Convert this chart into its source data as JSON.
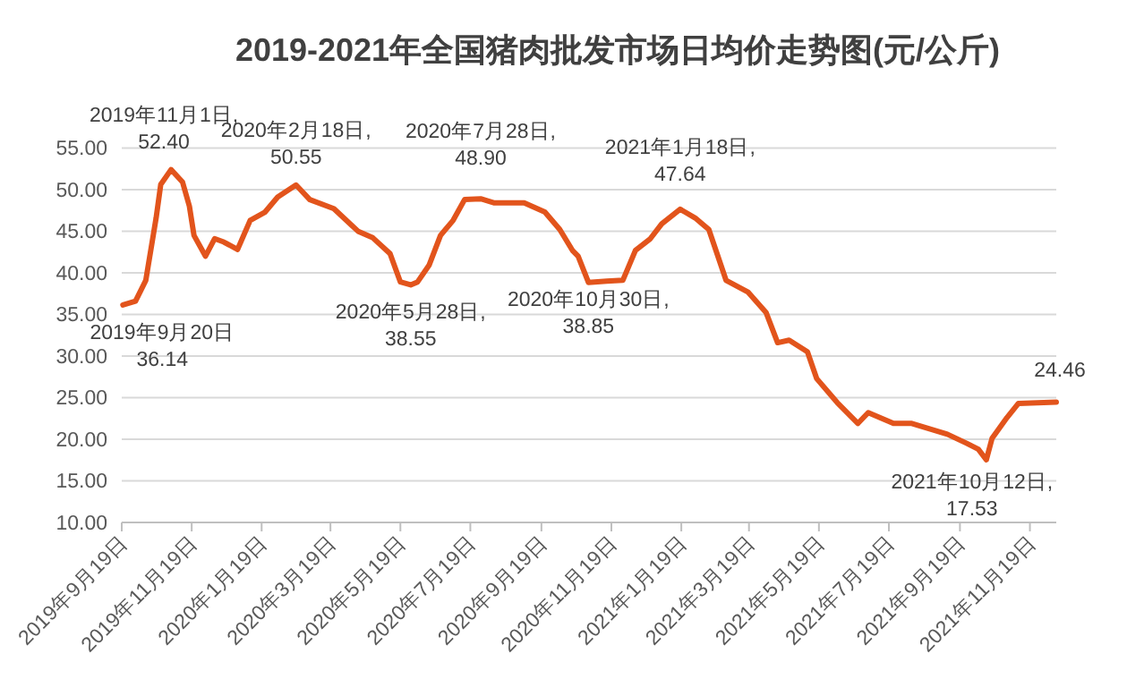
{
  "chart_data": {
    "type": "line",
    "title": "2019-2021年全国猪肉批发市场日均价走势图(元/公斤)",
    "x": [
      "2019-09-20",
      "2019-10-01",
      "2019-10-10",
      "2019-10-19",
      "2019-10-23",
      "2019-11-01",
      "2019-11-11",
      "2019-11-17",
      "2019-11-21",
      "2019-12-01",
      "2019-12-09",
      "2019-12-17",
      "2019-12-29",
      "2020-01-09",
      "2020-01-22",
      "2020-02-02",
      "2020-02-18",
      "2020-03-01",
      "2020-03-22",
      "2020-04-12",
      "2020-04-25",
      "2020-05-10",
      "2020-05-19",
      "2020-05-28",
      "2020-06-03",
      "2020-06-13",
      "2020-06-23",
      "2020-07-04",
      "2020-07-14",
      "2020-07-28",
      "2020-08-09",
      "2020-09-04",
      "2020-09-22",
      "2020-10-05",
      "2020-10-16",
      "2020-10-21",
      "2020-10-30",
      "2020-11-15",
      "2020-11-29",
      "2020-12-10",
      "2020-12-23",
      "2021-01-02",
      "2021-01-18",
      "2021-01-31",
      "2021-02-12",
      "2021-02-27",
      "2021-03-18",
      "2021-04-03",
      "2021-04-13",
      "2021-04-23",
      "2021-05-09",
      "2021-05-17",
      "2021-06-04",
      "2021-06-22",
      "2021-07-01",
      "2021-07-23",
      "2021-08-08",
      "2021-09-08",
      "2021-09-25",
      "2021-10-05",
      "2021-10-12",
      "2021-10-17",
      "2021-10-30",
      "2021-11-09",
      "2021-12-12"
    ],
    "series": [
      {
        "color": "#e2541c",
        "values": [
          36.14,
          36.6,
          39.1,
          46.6,
          50.6,
          52.4,
          50.9,
          48.0,
          44.5,
          42.0,
          44.1,
          43.7,
          42.8,
          46.3,
          47.3,
          49.1,
          50.55,
          48.8,
          47.7,
          45.0,
          44.2,
          42.3,
          38.9,
          38.55,
          38.9,
          40.9,
          44.5,
          46.3,
          48.8,
          48.9,
          48.4,
          48.4,
          47.3,
          45.2,
          42.7,
          42.0,
          38.85,
          39.0,
          39.1,
          42.7,
          44.1,
          45.9,
          47.64,
          46.6,
          45.2,
          39.1,
          37.7,
          35.2,
          31.6,
          31.9,
          30.5,
          27.3,
          24.4,
          21.9,
          23.2,
          21.9,
          21.9,
          20.6,
          19.5,
          18.8,
          17.53,
          20.1,
          22.6,
          24.3,
          24.46
        ]
      }
    ],
    "xlim": [
      "2019-09-19",
      "2021-12-12"
    ],
    "xticks": [
      {
        "value": "2019-09-19",
        "label": "2019年9月19日"
      },
      {
        "value": "2019-11-19",
        "label": "2019年11月19日"
      },
      {
        "value": "2020-01-19",
        "label": "2020年1月19日"
      },
      {
        "value": "2020-03-19",
        "label": "2020年3月19日"
      },
      {
        "value": "2020-05-19",
        "label": "2020年5月19日"
      },
      {
        "value": "2020-07-19",
        "label": "2020年7月19日"
      },
      {
        "value": "2020-09-19",
        "label": "2020年9月19日"
      },
      {
        "value": "2020-11-19",
        "label": "2020年11月19日"
      },
      {
        "value": "2021-01-19",
        "label": "2021年1月19日"
      },
      {
        "value": "2021-03-19",
        "label": "2021年3月19日"
      },
      {
        "value": "2021-05-19",
        "label": "2021年5月19日"
      },
      {
        "value": "2021-07-19",
        "label": "2021年7月19日"
      },
      {
        "value": "2021-09-19",
        "label": "2021年9月19日"
      },
      {
        "value": "2021-11-19",
        "label": "2021年11月19日"
      }
    ],
    "ylim": [
      10,
      55
    ],
    "yticks": [
      {
        "value": 10,
        "label": "10.00"
      },
      {
        "value": 15,
        "label": "15.00"
      },
      {
        "value": 20,
        "label": "20.00"
      },
      {
        "value": 25,
        "label": "25.00"
      },
      {
        "value": 30,
        "label": "30.00"
      },
      {
        "value": 35,
        "label": "35.00"
      },
      {
        "value": 40,
        "label": "40.00"
      },
      {
        "value": 45,
        "label": "45.00"
      },
      {
        "value": 50,
        "label": "50.00"
      },
      {
        "value": 55,
        "label": "55.00"
      }
    ],
    "grid": "y",
    "annotations": [
      {
        "text": "2019年9月20日\n36.14",
        "x": "2019-09-20",
        "y": 36.14
      },
      {
        "text": "2019年11月1日,\n52.40",
        "x": "2019-11-01",
        "y": 52.4
      },
      {
        "text": "2020年2月18日,\n50.55",
        "x": "2020-02-18",
        "y": 50.55
      },
      {
        "text": "2020年5月28日,\n38.55",
        "x": "2020-05-28",
        "y": 38.55
      },
      {
        "text": "2020年7月28日,\n48.90",
        "x": "2020-07-28",
        "y": 48.9
      },
      {
        "text": "2020年10月30日,\n38.85",
        "x": "2020-10-30",
        "y": 38.85
      },
      {
        "text": "2021年1月18日,\n47.64",
        "x": "2021-01-18",
        "y": 47.64
      },
      {
        "text": "2021年10月12日,\n17.53",
        "x": "2021-10-12",
        "y": 17.53
      },
      {
        "text": "24.46",
        "x": "2021-12-12",
        "y": 24.46
      }
    ]
  }
}
